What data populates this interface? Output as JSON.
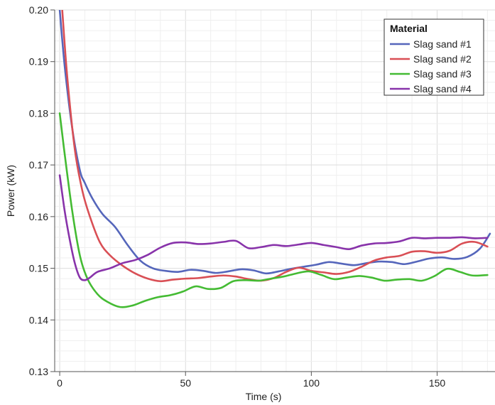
{
  "chart_data": {
    "type": "line",
    "xlabel": "Time (s)",
    "ylabel": "Power (kW)",
    "xlim": [
      -2,
      173
    ],
    "ylim": [
      0.13,
      0.2
    ],
    "x_ticks": [
      0,
      50,
      100,
      150
    ],
    "y_ticks": [
      0.13,
      0.14,
      0.15,
      0.16,
      0.17,
      0.18,
      0.19,
      0.2
    ],
    "y_tick_labels": [
      "0.13",
      "0.14",
      "0.15",
      "0.16",
      "0.17",
      "0.18",
      "0.19",
      "0.20"
    ],
    "grid": true,
    "legend": {
      "title": "Material",
      "position": "top-right"
    },
    "series": [
      {
        "name": "Slag sand #1",
        "color": "#5566bb",
        "x": [
          0,
          2,
          5,
          8,
          10,
          13,
          17,
          22,
          27,
          32,
          37,
          42,
          47,
          52,
          57,
          62,
          67,
          72,
          77,
          82,
          87,
          92,
          97,
          102,
          107,
          112,
          117,
          122,
          127,
          132,
          137,
          142,
          147,
          152,
          157,
          162,
          167,
          171
        ],
        "y": [
          0.2,
          0.189,
          0.177,
          0.169,
          0.1665,
          0.1635,
          0.1605,
          0.158,
          0.1545,
          0.1515,
          0.15,
          0.1495,
          0.1493,
          0.1497,
          0.1495,
          0.1491,
          0.1494,
          0.1498,
          0.1496,
          0.149,
          0.1494,
          0.1499,
          0.1503,
          0.1507,
          0.1512,
          0.1509,
          0.1506,
          0.151,
          0.1513,
          0.1512,
          0.1508,
          0.1513,
          0.1519,
          0.1521,
          0.1518,
          0.1522,
          0.1538,
          0.1567
        ]
      },
      {
        "name": "Slag sand #2",
        "color": "#d94f55",
        "x": [
          1,
          3,
          6,
          9,
          12,
          16,
          20,
          25,
          30,
          35,
          40,
          45,
          50,
          55,
          60,
          65,
          70,
          75,
          80,
          85,
          90,
          95,
          100,
          105,
          110,
          115,
          120,
          125,
          130,
          135,
          140,
          145,
          150,
          155,
          160,
          165,
          170
        ],
        "y": [
          0.2,
          0.187,
          0.173,
          0.165,
          0.16,
          0.155,
          0.1525,
          0.1505,
          0.149,
          0.148,
          0.1475,
          0.1478,
          0.148,
          0.1481,
          0.1484,
          0.1486,
          0.1484,
          0.1479,
          0.1476,
          0.1481,
          0.1493,
          0.1501,
          0.1495,
          0.1492,
          0.1489,
          0.1493,
          0.1503,
          0.1515,
          0.1521,
          0.1524,
          0.1532,
          0.1533,
          0.153,
          0.1534,
          0.1548,
          0.1551,
          0.1542
        ]
      },
      {
        "name": "Slag sand #3",
        "color": "#44bb33",
        "x": [
          0,
          2,
          5,
          8,
          11,
          15,
          19,
          24,
          29,
          34,
          39,
          44,
          49,
          54,
          59,
          64,
          69,
          74,
          79,
          84,
          89,
          94,
          99,
          104,
          109,
          114,
          119,
          124,
          129,
          134,
          139,
          144,
          149,
          154,
          159,
          164,
          170
        ],
        "y": [
          0.18,
          0.172,
          0.161,
          0.1525,
          0.148,
          0.145,
          0.1435,
          0.1425,
          0.1428,
          0.1437,
          0.1444,
          0.1448,
          0.1455,
          0.1465,
          0.146,
          0.1462,
          0.1475,
          0.1477,
          0.1476,
          0.148,
          0.1484,
          0.149,
          0.1494,
          0.1487,
          0.1479,
          0.1482,
          0.1485,
          0.1482,
          0.1476,
          0.1478,
          0.1479,
          0.1476,
          0.1485,
          0.1499,
          0.1493,
          0.1486,
          0.1487
        ]
      },
      {
        "name": "Slag sand #4",
        "color": "#8833aa",
        "x": [
          0,
          2,
          4,
          6,
          8,
          10,
          12,
          15,
          20,
          25,
          30,
          35,
          40,
          45,
          50,
          55,
          60,
          65,
          70,
          75,
          80,
          85,
          90,
          95,
          100,
          105,
          110,
          115,
          120,
          125,
          130,
          135,
          140,
          145,
          150,
          155,
          160,
          165,
          170
        ],
        "y": [
          0.168,
          0.161,
          0.1555,
          0.151,
          0.1482,
          0.1477,
          0.1482,
          0.1493,
          0.15,
          0.151,
          0.1516,
          0.1526,
          0.154,
          0.1549,
          0.155,
          0.1547,
          0.1548,
          0.1551,
          0.1553,
          0.1539,
          0.1541,
          0.1545,
          0.1543,
          0.1546,
          0.1549,
          0.1545,
          0.1541,
          0.1537,
          0.1544,
          0.1548,
          0.1549,
          0.1552,
          0.1559,
          0.1558,
          0.1559,
          0.1559,
          0.156,
          0.1558,
          0.1559
        ]
      }
    ]
  }
}
